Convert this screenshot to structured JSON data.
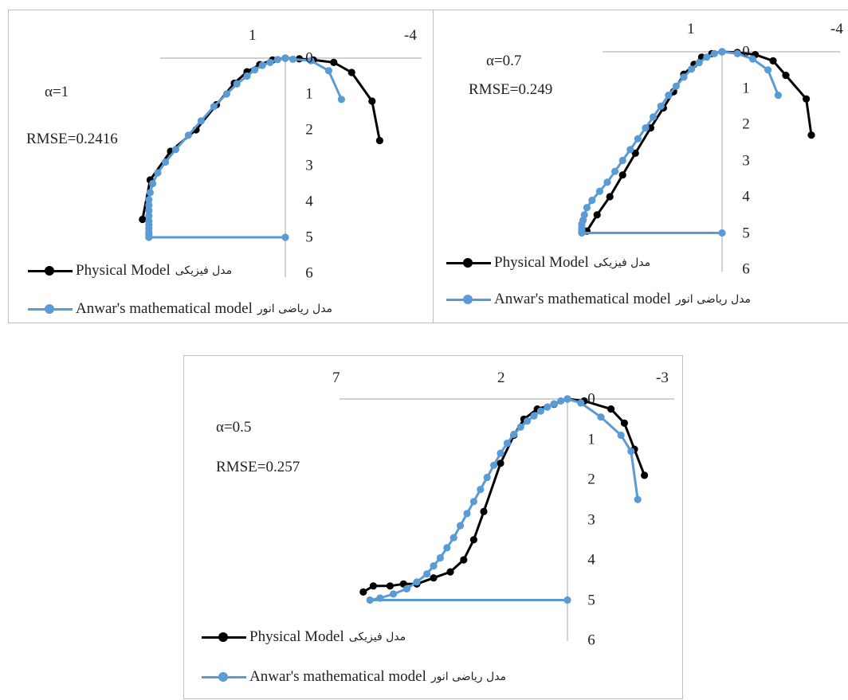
{
  "colors": {
    "physical": "#000000",
    "anwar": "#5b9bd5",
    "axis": "#a6a6a6"
  },
  "legend": {
    "physical_en": "Physical Model",
    "physical_fa": "مدل فیزیکی",
    "anwar_en": "Anwar's mathematical model",
    "anwar_fa": "مدل ریاضی انور"
  },
  "chart_data": [
    {
      "type": "scatter",
      "alpha_text": "α=1",
      "rmse_text": "RMSE=0.2416",
      "x_ticks": [
        "1",
        "-4"
      ],
      "y_ticks": [
        "0",
        "1",
        "2",
        "3",
        "4",
        "5",
        "6"
      ],
      "series": [
        {
          "name": "Physical Model",
          "x": [
            -3.7,
            -3.4,
            -2.6,
            -1.9,
            -1.1,
            -0.55,
            0,
            0.5,
            1.0,
            1.5,
            2.0,
            2.7,
            3.5,
            4.5,
            5.3,
            5.6
          ],
          "y": [
            2.3,
            1.2,
            0.4,
            0.12,
            0.05,
            0.02,
            0,
            0.05,
            0.18,
            0.38,
            0.7,
            1.3,
            2.0,
            2.6,
            3.4,
            4.5
          ]
        },
        {
          "name": "Anwar's mathematical model",
          "x": [
            -2.2,
            -1.7,
            -1.0,
            -0.3,
            0,
            0.3,
            0.6,
            0.9,
            1.2,
            1.5,
            1.9,
            2.3,
            2.8,
            3.3,
            3.8,
            4.3,
            4.7,
            5.0,
            5.2,
            5.3,
            5.35,
            5.35,
            5.35,
            5.35,
            5.35,
            5.35,
            5.35,
            5.35,
            5.35,
            5.35,
            0
          ],
          "y": [
            1.15,
            0.35,
            0.07,
            0.03,
            0,
            0.04,
            0.12,
            0.2,
            0.33,
            0.5,
            0.72,
            1.0,
            1.35,
            1.75,
            2.15,
            2.55,
            2.9,
            3.2,
            3.5,
            3.75,
            3.95,
            4.1,
            4.25,
            4.4,
            4.55,
            4.65,
            4.75,
            4.85,
            4.92,
            5.0,
            5.0
          ]
        }
      ]
    },
    {
      "type": "scatter",
      "alpha_text": "α=0.7",
      "rmse_text": "RMSE=0.249",
      "x_ticks": [
        "1",
        "-4"
      ],
      "y_ticks": [
        "0",
        "1",
        "2",
        "3",
        "4",
        "5",
        "6"
      ],
      "series": [
        {
          "name": "Physical Model",
          "x": [
            -3.5,
            -3.3,
            -2.5,
            -2.0,
            -1.3,
            -0.6,
            0,
            0.4,
            0.8,
            1.1,
            1.5,
            1.9,
            2.3,
            2.8,
            3.4,
            3.9,
            4.4,
            4.9,
            5.3
          ],
          "y": [
            2.3,
            1.3,
            0.65,
            0.25,
            0.08,
            0.02,
            0,
            0.05,
            0.15,
            0.35,
            0.62,
            1.1,
            1.55,
            2.1,
            2.8,
            3.4,
            4.0,
            4.5,
            4.95
          ]
        },
        {
          "name": "Anwar's mathematical model",
          "x": [
            -2.2,
            -1.8,
            -1.2,
            -0.6,
            0,
            0.3,
            0.6,
            0.9,
            1.2,
            1.5,
            1.8,
            2.1,
            2.4,
            2.7,
            3.0,
            3.3,
            3.6,
            3.9,
            4.2,
            4.5,
            4.8,
            5.1,
            5.3,
            5.4,
            5.45,
            5.5,
            5.5,
            5.5,
            5.5,
            5.5,
            0
          ],
          "y": [
            1.2,
            0.5,
            0.2,
            0.05,
            0,
            0.05,
            0.15,
            0.3,
            0.48,
            0.7,
            0.95,
            1.2,
            1.5,
            1.8,
            2.1,
            2.4,
            2.7,
            3.0,
            3.3,
            3.6,
            3.85,
            4.1,
            4.3,
            4.5,
            4.65,
            4.75,
            4.85,
            4.92,
            4.97,
            5.0,
            5.0
          ]
        }
      ]
    },
    {
      "type": "scatter",
      "alpha_text": "α=0.5",
      "rmse_text": "RMSE=0.257",
      "x_ticks": [
        "7",
        "2",
        "-3"
      ],
      "y_ticks": [
        "0",
        "1",
        "2",
        "3",
        "4",
        "5",
        "6"
      ],
      "series": [
        {
          "name": "Physical Model",
          "x": [
            -2.3,
            -2.0,
            -1.7,
            -1.3,
            -0.5,
            0,
            0.4,
            0.9,
            1.3,
            1.6,
            2.0,
            2.5,
            2.8,
            3.1,
            3.5,
            4.0,
            4.5,
            4.9,
            5.3,
            5.8,
            6.1
          ],
          "y": [
            1.9,
            1.25,
            0.6,
            0.25,
            0.05,
            0,
            0.13,
            0.25,
            0.5,
            0.9,
            1.6,
            2.8,
            3.5,
            4.0,
            4.3,
            4.45,
            4.6,
            4.6,
            4.65,
            4.65,
            4.8
          ]
        },
        {
          "name": "Anwar's mathematical model",
          "x": [
            -2.1,
            -1.9,
            -1.6,
            -1.0,
            -0.4,
            0,
            0.2,
            0.4,
            0.6,
            0.8,
            1.0,
            1.2,
            1.4,
            1.6,
            1.8,
            2.0,
            2.2,
            2.4,
            2.6,
            2.8,
            3.0,
            3.2,
            3.4,
            3.6,
            3.8,
            4.0,
            4.2,
            4.5,
            4.8,
            5.2,
            5.6,
            5.9,
            0
          ],
          "y": [
            2.5,
            1.3,
            0.9,
            0.45,
            0.1,
            0,
            0.05,
            0.12,
            0.2,
            0.3,
            0.42,
            0.55,
            0.7,
            0.88,
            1.1,
            1.35,
            1.65,
            1.95,
            2.25,
            2.55,
            2.85,
            3.15,
            3.45,
            3.7,
            3.95,
            4.15,
            4.35,
            4.55,
            4.72,
            4.85,
            4.95,
            5.0,
            5.0
          ]
        }
      ]
    }
  ]
}
